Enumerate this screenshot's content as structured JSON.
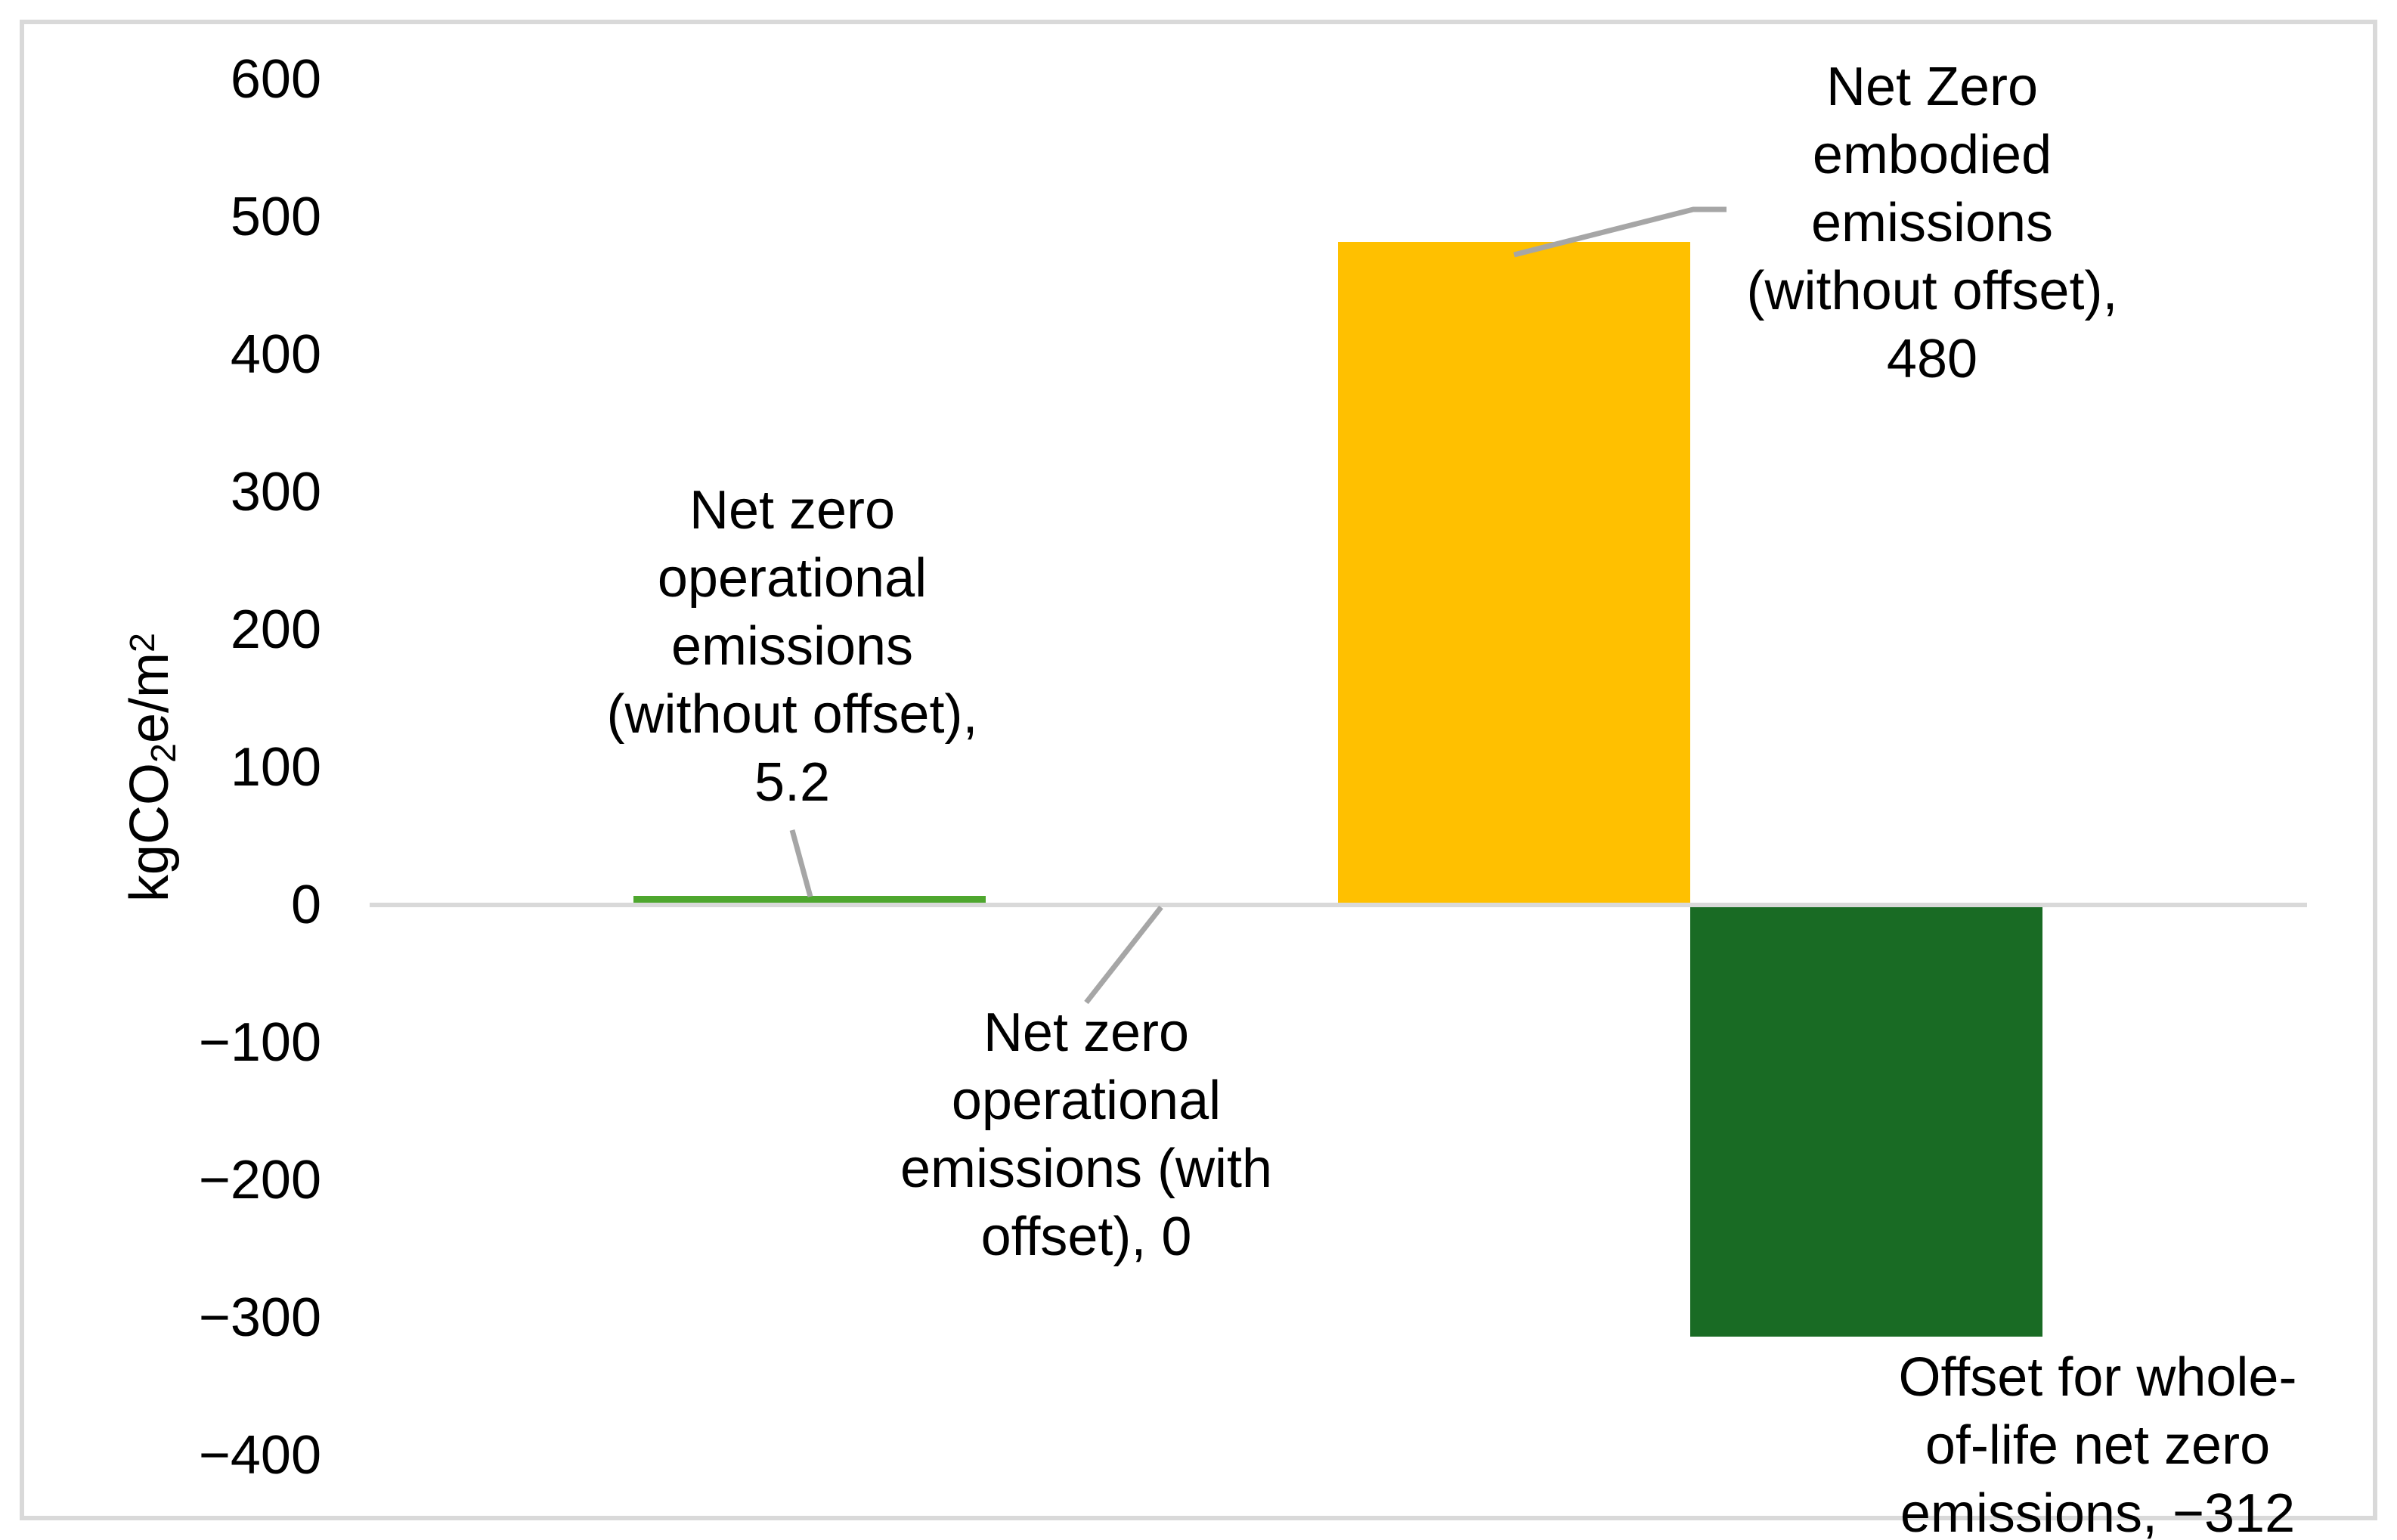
{
  "chart_data": {
    "type": "bar",
    "title": "",
    "xlabel": "",
    "ylabel": "kgCO2e/m2",
    "ylabel_rich": {
      "pre": "kgCO",
      "sub": "2",
      "mid": "e/m",
      "sup": "2"
    },
    "ylim": [
      -400,
      600
    ],
    "yticks": [
      600,
      500,
      400,
      300,
      200,
      100,
      0,
      -100,
      -200,
      -300,
      -400
    ],
    "gridlines": false,
    "legend_position": "none",
    "axis_line_color": "#D9D9D9",
    "chart_border_color": "#D9D9D9",
    "leader_line_color": "#A6A6A6",
    "label_text_color": "#000000",
    "background_color": "#FFFFFF",
    "categories": [
      "Net zero operational emissions (without offset)",
      "Net zero operational emissions (with offset)",
      "Net Zero embodied emissions (without offset)",
      "Offset for whole-of-life net zero emissions"
    ],
    "values": [
      5.2,
      0,
      480,
      -312
    ],
    "colors": [
      "#4EA72E",
      "#4EA72E",
      "#FFC000",
      "#196B24"
    ],
    "data_labels": [
      {
        "lines": [
          "Net zero",
          "operational",
          "emissions",
          "(without offset),",
          "5.2"
        ]
      },
      {
        "lines": [
          "Net zero",
          "operational",
          "emissions (with",
          "offset), 0"
        ]
      },
      {
        "lines": [
          "Net Zero",
          "embodied",
          "emissions",
          "(without offset),",
          "480"
        ]
      },
      {
        "lines": [
          "Offset for whole-",
          "of-life net zero",
          "emissions, −312"
        ]
      }
    ]
  }
}
